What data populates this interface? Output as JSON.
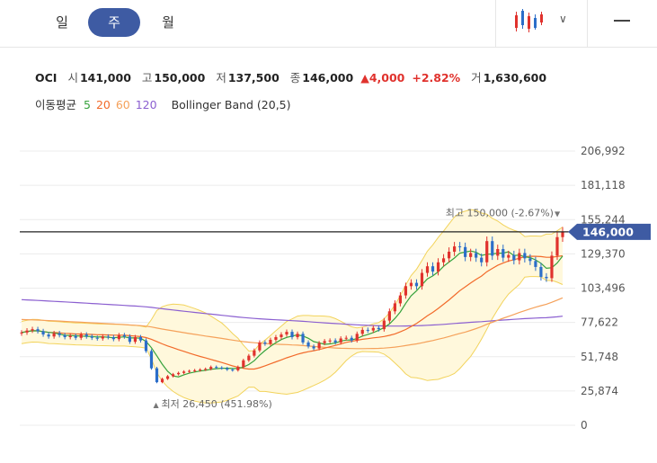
{
  "tabs": [
    {
      "label": "일",
      "active": false
    },
    {
      "label": "주",
      "active": true
    },
    {
      "label": "월",
      "active": false
    }
  ],
  "stock": {
    "name": "OCI",
    "open_label": "시",
    "open": "141,000",
    "high_label": "고",
    "high": "150,000",
    "low_label": "저",
    "low": "137,500",
    "close_label": "종",
    "close": "146,000",
    "change": "4,000",
    "change_pct": "+2.82%",
    "volume_label": "거",
    "volume": "1,630,600"
  },
  "ma_legend": {
    "label": "이동평균",
    "items": [
      {
        "text": "5",
        "color": "#36a23c"
      },
      {
        "text": "20",
        "color": "#f26a2a"
      },
      {
        "text": "60",
        "color": "#f5a15a"
      },
      {
        "text": "120",
        "color": "#8b5fd0"
      }
    ],
    "bollinger": "Bollinger Band (20,5)"
  },
  "chart_data": {
    "type": "candlestick",
    "y_ticks": [
      {
        "value": 206992,
        "label": "206,992"
      },
      {
        "value": 181118,
        "label": "181,118"
      },
      {
        "value": 155244,
        "label": "155,244"
      },
      {
        "value": 129370,
        "label": "129,370"
      },
      {
        "value": 103496,
        "label": "103,496"
      },
      {
        "value": 77622,
        "label": "77,622"
      },
      {
        "value": 51748,
        "label": "51,748"
      },
      {
        "value": 25874,
        "label": "25,874"
      },
      {
        "value": 0,
        "label": "0"
      }
    ],
    "ylim": [
      0,
      206992
    ],
    "current_price": 146000,
    "current_price_label": "146,000",
    "high_annotation": "최고 150,000 (-2.67%)",
    "high_value": 150000,
    "high_index": 99,
    "low_annotation": "최저 26,450 (451.98%)",
    "low_value": 26450,
    "low_index": 25,
    "closes": [
      70000,
      71500,
      72500,
      71000,
      68500,
      67000,
      69500,
      68000,
      66500,
      67500,
      66000,
      68500,
      67000,
      66000,
      65500,
      67000,
      66500,
      65000,
      68000,
      67000,
      63000,
      66500,
      64000,
      56000,
      43000,
      32500,
      35000,
      37000,
      38500,
      39500,
      40500,
      41000,
      41500,
      42000,
      42500,
      44000,
      43500,
      43000,
      42000,
      41500,
      44000,
      49000,
      52500,
      56500,
      62500,
      61500,
      64500,
      66500,
      68500,
      70500,
      66500,
      69000,
      62500,
      59500,
      58000,
      62000,
      63500,
      64000,
      62500,
      65500,
      66000,
      64000,
      69000,
      72000,
      71500,
      73500,
      72500,
      79000,
      86000,
      92000,
      98000,
      105000,
      107500,
      105000,
      115000,
      120000,
      116000,
      123000,
      126000,
      131000,
      135000,
      134500,
      127000,
      130000,
      126500,
      123000,
      139000,
      128000,
      133000,
      126500,
      128500,
      124500,
      130000,
      126000,
      124000,
      119500,
      112000,
      111000,
      128000,
      142000,
      146000
    ],
    "series": [
      {
        "name": "5",
        "color": "#36a23c"
      },
      {
        "name": "20",
        "color": "#f26a2a"
      },
      {
        "name": "60",
        "color": "#f5a15a"
      },
      {
        "name": "120",
        "color": "#8b5fd0"
      }
    ],
    "colors": {
      "up": "#e0322d",
      "down": "#2b6ec9",
      "band_fill": "#fff8dc",
      "band_line": "#f2d35b",
      "price_line": "#222222",
      "price_tag": "#3e5ba3"
    }
  }
}
